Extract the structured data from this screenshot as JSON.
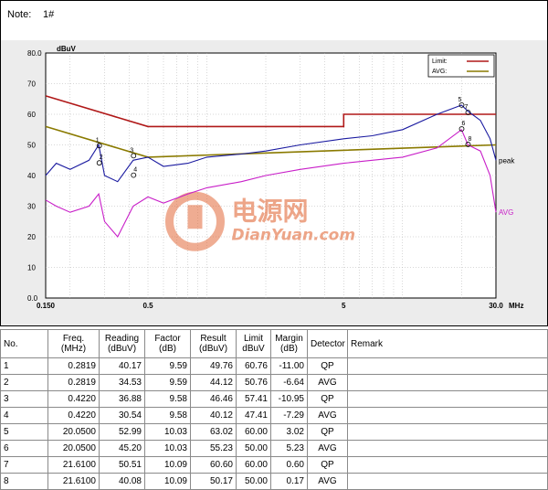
{
  "note": {
    "label": "Note:",
    "value": "1#"
  },
  "chart_data": {
    "type": "line",
    "ylabel": "dBuV",
    "xunit": "MHz",
    "xscale": "log",
    "xlim": [
      0.15,
      30.0
    ],
    "ylim": [
      0.0,
      80.0
    ],
    "yticks": [
      "80.0",
      "70",
      "60",
      "50",
      "40",
      "30",
      "20",
      "10",
      "0.0"
    ],
    "ytick_values": [
      80,
      70,
      60,
      50,
      40,
      30,
      20,
      10,
      0
    ],
    "xticks": [
      "0.150",
      "0.5",
      "5",
      "30.0"
    ],
    "xtick_values": [
      0.15,
      0.5,
      5,
      30
    ],
    "grid": true,
    "legend": {
      "position": "top-right",
      "entries": [
        "Limit:",
        "AVG:"
      ]
    },
    "series": [
      {
        "name": "Limit:",
        "color": "#b01818",
        "x": [
          0.15,
          0.5,
          0.5,
          5,
          5,
          30
        ],
        "y": [
          66,
          56,
          56,
          56,
          60,
          60
        ]
      },
      {
        "name": "AVG:",
        "color": "#8a7a00",
        "x": [
          0.15,
          0.5,
          0.5,
          30
        ],
        "y": [
          56,
          46,
          46,
          50
        ]
      },
      {
        "name": "peak",
        "color": "#1a1aa0",
        "x": [
          0.15,
          0.17,
          0.2,
          0.25,
          0.28,
          0.3,
          0.35,
          0.42,
          0.5,
          0.6,
          0.8,
          1,
          1.5,
          2,
          3,
          5,
          7,
          10,
          15,
          20,
          21.6,
          25,
          28,
          30
        ],
        "y": [
          40,
          44,
          42,
          45,
          50,
          40,
          38,
          45,
          46,
          43,
          44,
          46,
          47,
          48,
          50,
          52,
          53,
          55,
          60,
          63,
          61,
          58,
          52,
          45
        ]
      },
      {
        "name": "AVG",
        "color": "#c81ec8",
        "x": [
          0.15,
          0.17,
          0.2,
          0.25,
          0.28,
          0.3,
          0.35,
          0.42,
          0.5,
          0.6,
          0.8,
          1,
          1.5,
          2,
          3,
          5,
          7,
          10,
          15,
          20,
          21.6,
          25,
          28,
          30
        ],
        "y": [
          32,
          30,
          28,
          30,
          34,
          25,
          20,
          30,
          33,
          31,
          34,
          36,
          38,
          40,
          42,
          44,
          45,
          46,
          49,
          55,
          50,
          48,
          40,
          28
        ]
      }
    ],
    "points": [
      {
        "label": "1",
        "x": 0.2819,
        "y": 49.76
      },
      {
        "label": "2",
        "x": 0.2819,
        "y": 44.12
      },
      {
        "label": "3",
        "x": 0.422,
        "y": 46.46
      },
      {
        "label": "4",
        "x": 0.422,
        "y": 40.12
      },
      {
        "label": "5",
        "x": 20.05,
        "y": 63.02
      },
      {
        "label": "6",
        "x": 20.05,
        "y": 55.23
      },
      {
        "label": "7",
        "x": 21.61,
        "y": 60.6
      },
      {
        "label": "8",
        "x": 21.61,
        "y": 50.17
      }
    ],
    "end_labels": {
      "peak": "peak",
      "avg": "AVG"
    }
  },
  "watermark": {
    "cn": "电源网",
    "en": "DianYuan.com",
    "color": "#e26a3a"
  },
  "table": {
    "headers": [
      {
        "l1": "No.",
        "l2": ""
      },
      {
        "l1": "Freq.",
        "l2": "(MHz)"
      },
      {
        "l1": "Reading",
        "l2": "(dBuV)"
      },
      {
        "l1": "Factor",
        "l2": "(dB)"
      },
      {
        "l1": "Result",
        "l2": "(dBuV)"
      },
      {
        "l1": "Limit",
        "l2": "dBuV"
      },
      {
        "l1": "Margin",
        "l2": "(dB)"
      },
      {
        "l1": "Detector",
        "l2": ""
      },
      {
        "l1": "Remark",
        "l2": ""
      }
    ],
    "rows": [
      [
        "1",
        "0.2819",
        "40.17",
        "9.59",
        "49.76",
        "60.76",
        "-11.00",
        "QP",
        ""
      ],
      [
        "2",
        "0.2819",
        "34.53",
        "9.59",
        "44.12",
        "50.76",
        "-6.64",
        "AVG",
        ""
      ],
      [
        "3",
        "0.4220",
        "36.88",
        "9.58",
        "46.46",
        "57.41",
        "-10.95",
        "QP",
        ""
      ],
      [
        "4",
        "0.4220",
        "30.54",
        "9.58",
        "40.12",
        "47.41",
        "-7.29",
        "AVG",
        ""
      ],
      [
        "5",
        "20.0500",
        "52.99",
        "10.03",
        "63.02",
        "60.00",
        "3.02",
        "QP",
        ""
      ],
      [
        "6",
        "20.0500",
        "45.20",
        "10.03",
        "55.23",
        "50.00",
        "5.23",
        "AVG",
        ""
      ],
      [
        "7",
        "21.6100",
        "50.51",
        "10.09",
        "60.60",
        "60.00",
        "0.60",
        "QP",
        ""
      ],
      [
        "8",
        "21.6100",
        "40.08",
        "10.09",
        "50.17",
        "50.00",
        "0.17",
        "AVG",
        ""
      ]
    ]
  }
}
